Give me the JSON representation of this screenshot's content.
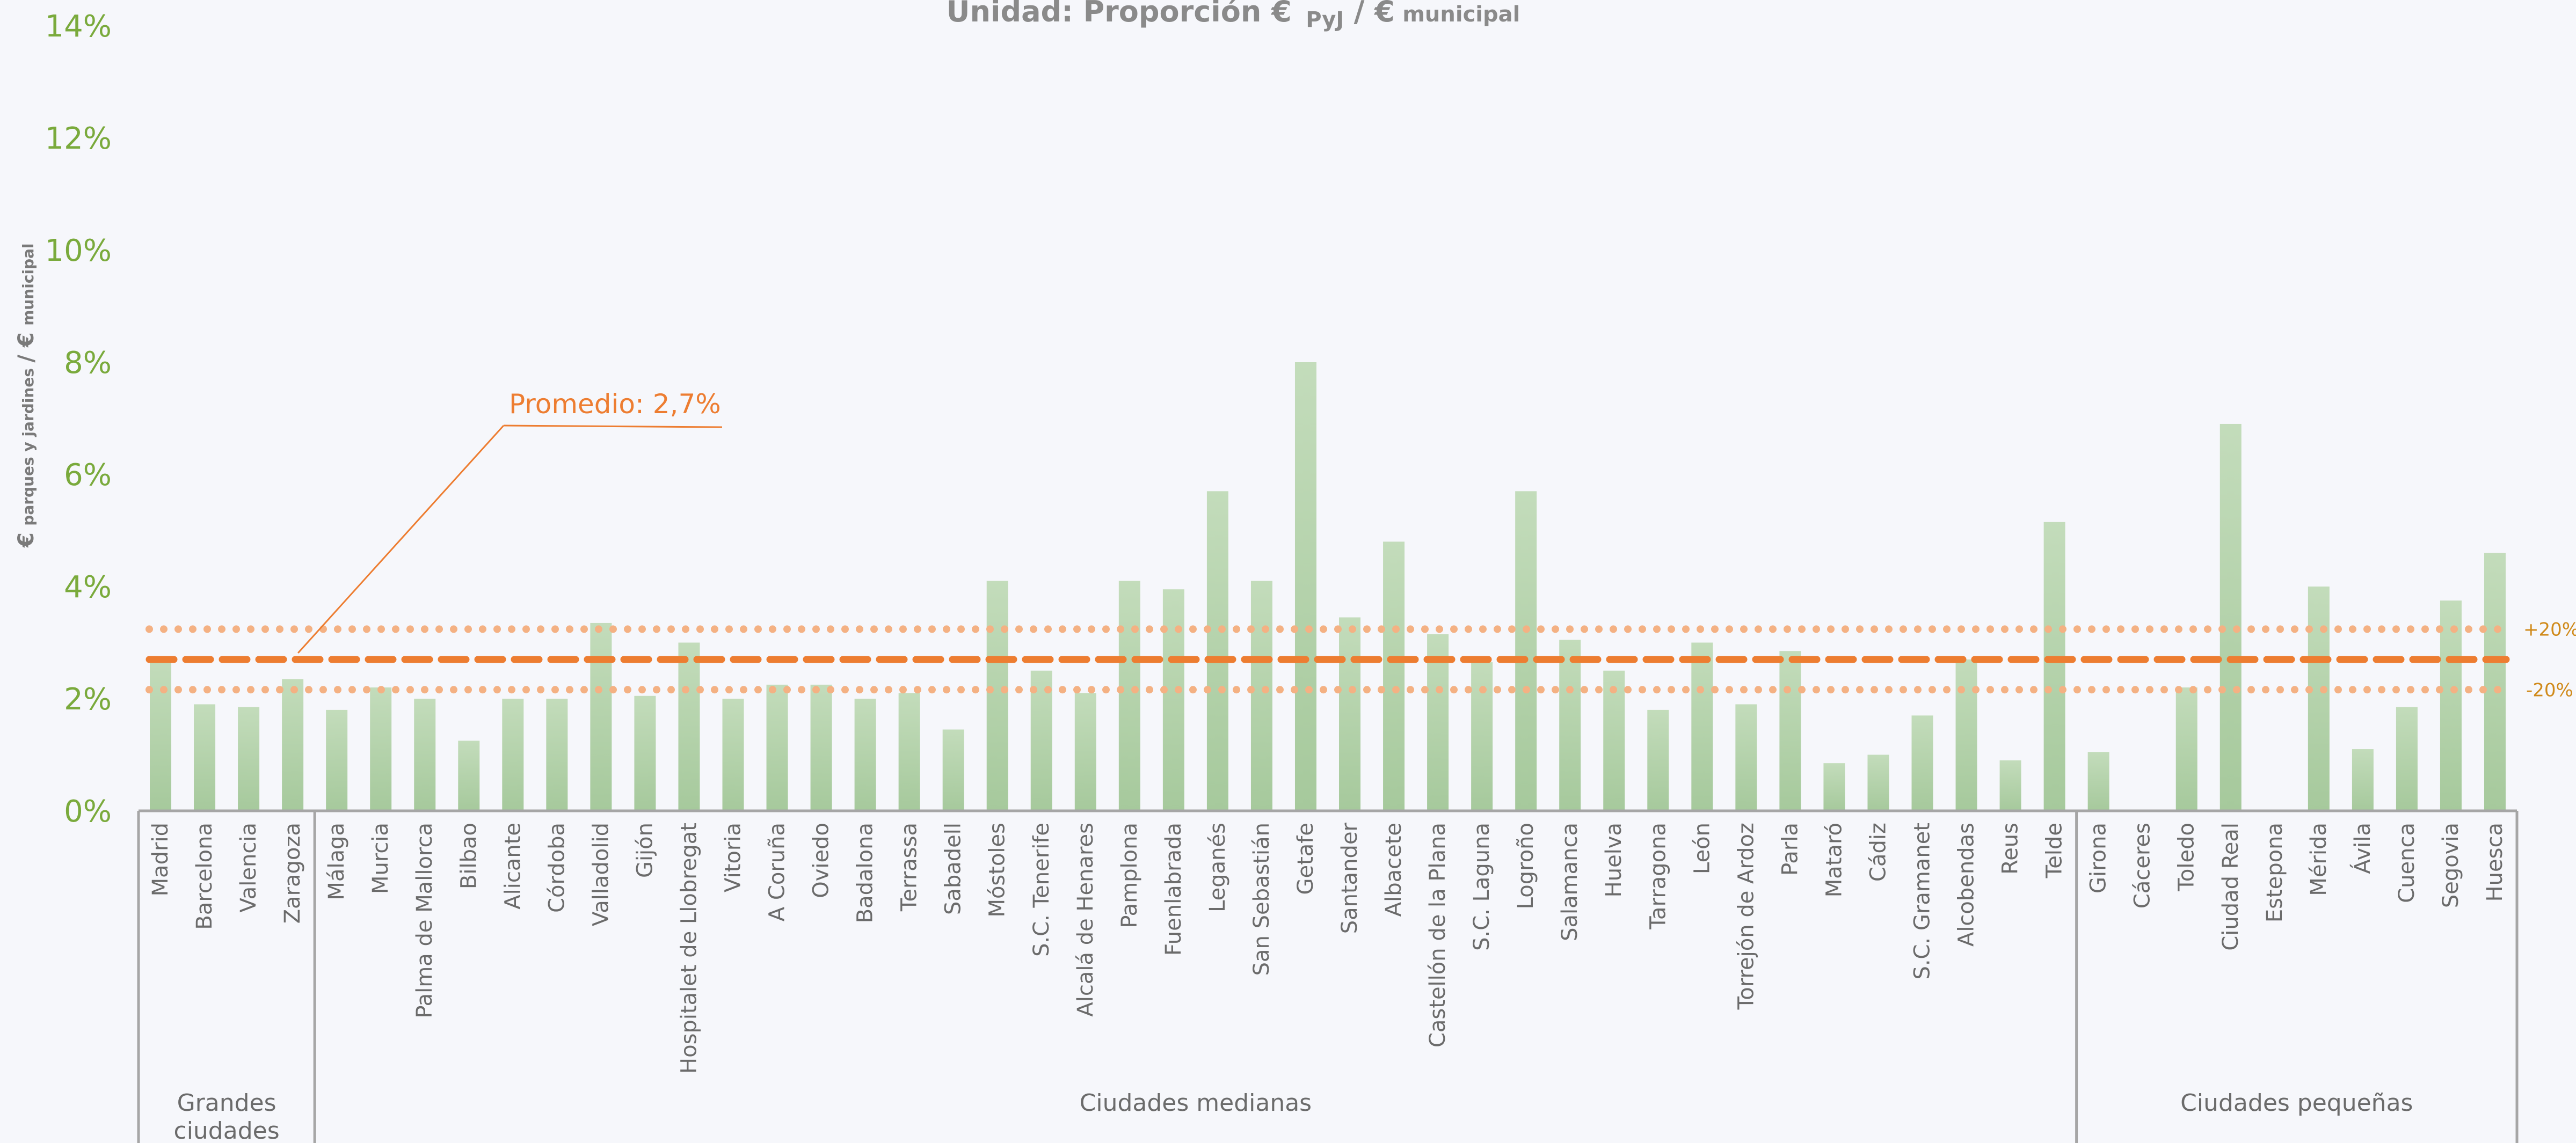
{
  "chart_data": {
    "type": "bar",
    "title": {
      "prefix": "Unidad: Proporción €",
      "sub1": "PyJ",
      "mid": " / €",
      "sub2": "municipal"
    },
    "ylabel": {
      "main1": "€",
      "sub1": "parques y jardines",
      "main2": "/ €",
      "sub2": "municipal"
    },
    "ylim": [
      0,
      14
    ],
    "yticks": [
      {
        "value": 0,
        "label": "0%"
      },
      {
        "value": 2,
        "label": "2%"
      },
      {
        "value": 4,
        "label": "4%"
      },
      {
        "value": 6,
        "label": "6%"
      },
      {
        "value": 8,
        "label": "8%"
      },
      {
        "value": 10,
        "label": "10%"
      },
      {
        "value": 12,
        "label": "12%"
      },
      {
        "value": 14,
        "label": "14%"
      }
    ],
    "categories": [
      "Madrid",
      "Barcelona",
      "Valencia",
      "Zaragoza",
      "Málaga",
      "Murcia",
      "Palma de Mallorca",
      "Bilbao",
      "Alicante",
      "Córdoba",
      "Valladolid",
      "Gijón",
      "Hospitalet de Llobregat",
      "Vitoria",
      "A Coruña",
      "Oviedo",
      "Badalona",
      "Terrassa",
      "Sabadell",
      "Móstoles",
      "S.C. Tenerife",
      "Alcalá de Henares",
      "Pamplona",
      "Fuenlabrada",
      "Leganés",
      "San Sebastián",
      "Getafe",
      "Santander",
      "Albacete",
      "Castellón de la Plana",
      "S.C. Laguna",
      "Logroño",
      "Salamanca",
      "Huelva",
      "Tarragona",
      "León",
      "Torrejón de Ardoz",
      "Parla",
      "Mataró",
      "Cádiz",
      "S.C. Gramanet",
      "Alcobendas",
      "Reus",
      "Telde",
      "Girona",
      "Cáceres",
      "Toledo",
      "Ciudad Real",
      "Estepona",
      "Mérida",
      "Ávila",
      "Cuenca",
      "Segovia",
      "Huesca"
    ],
    "values": [
      2.7,
      1.9,
      1.85,
      2.35,
      1.8,
      2.2,
      2.0,
      1.25,
      2.0,
      2.0,
      3.35,
      2.05,
      3.0,
      2.0,
      2.25,
      2.25,
      2.0,
      2.1,
      1.45,
      4.1,
      2.5,
      2.1,
      4.1,
      3.95,
      5.7,
      4.1,
      8.0,
      3.45,
      4.8,
      3.15,
      2.65,
      5.7,
      3.05,
      2.5,
      1.8,
      3.0,
      1.9,
      2.85,
      0.85,
      1.0,
      1.7,
      2.7,
      0.9,
      5.15,
      1.05,
      0,
      2.2,
      6.9,
      0,
      4.0,
      1.1,
      1.85,
      3.75,
      4.6
    ],
    "groups": [
      {
        "label": "Grandes ciudades",
        "start": 0,
        "end": 3
      },
      {
        "label": "Ciudades medianas",
        "start": 4,
        "end": 43
      },
      {
        "label": "Ciudades pequeñas",
        "start": 44,
        "end": 53
      }
    ],
    "average": {
      "value": 2.7,
      "label": "Promedio: 2,7%"
    },
    "band_upper": {
      "value": 3.24,
      "label": "+20%"
    },
    "band_lower": {
      "value": 2.16,
      "label": "-20%"
    },
    "colors": {
      "bar_top": "#c3dcbb",
      "bar_bottom": "#a6c99c",
      "average": "#ed7d31",
      "band": "#f4b183",
      "ytick": "#7aaa3c",
      "axis": "#a6a6a6"
    }
  }
}
